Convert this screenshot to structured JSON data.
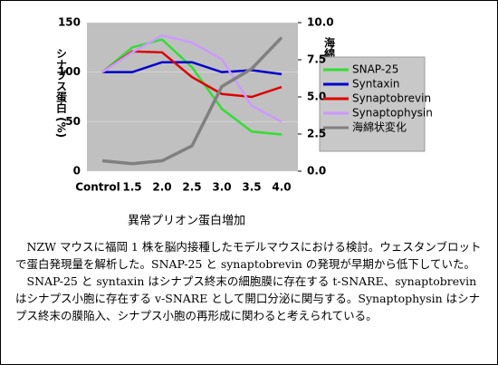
{
  "chart_data": {
    "type": "line",
    "x_label": "異常プリオン蛋白増加",
    "y_label": "シナプス蛋白 (%)",
    "y2_label": "海綿状変化 (%)",
    "categories": [
      "Control",
      "1.5",
      "2.0",
      "2.5",
      "3.0",
      "3.5",
      "4.0"
    ],
    "ylim": [
      0,
      150
    ],
    "yticks": [
      0,
      50,
      100,
      150
    ],
    "y2lim": [
      0,
      10
    ],
    "y2ticks": [
      {
        "value": 0,
        "label": "0.0"
      },
      {
        "value": 2.5,
        "label": "2.5"
      },
      {
        "value": 5,
        "label": "5.0"
      },
      {
        "value": 7.5,
        "label": "7.5"
      },
      {
        "value": 10,
        "label": "10.0"
      }
    ],
    "grid": true,
    "legend": "right",
    "series": [
      {
        "name": "SNAP-25",
        "color": "#33dd33",
        "values": [
          100,
          125,
          133,
          105,
          63,
          40,
          37
        ]
      },
      {
        "name": "Syntaxin",
        "color": "#0000cc",
        "values": [
          100,
          100,
          110,
          110,
          100,
          102,
          98
        ]
      },
      {
        "name": "Synaptobrevin",
        "color": "#dd0000",
        "values": [
          100,
          121,
          120,
          95,
          78,
          75,
          85
        ]
      },
      {
        "name": "Synaptophysin",
        "color": "#cc99ff",
        "values": [
          100,
          120,
          137,
          130,
          113,
          66,
          50
        ]
      },
      {
        "name": "海綿状変化",
        "color": "#808080",
        "axis": "y2",
        "values": [
          0.7,
          0.5,
          0.7,
          1.7,
          5.7,
          6.9,
          9.0
        ]
      }
    ]
  },
  "caption": {
    "paragraphs": [
      "NZW マウスに福岡 1 株を脳内接種したモデルマウスにおける検討。ウェスタンブロットで蛋白発現量を解析した。SNAP-25 と synaptobrevin の発現が早期から低下していた。",
      "SNAP-25 と syntaxin はシナプス終末の細胞膜に存在する t-SNARE、synaptobrevin はシナプス小胞に存在する v-SNARE として開口分泌に関与する。Synaptophysin はシナプス終末の膜陥入、シナプス小胞の再形成に関わると考えられている。"
    ]
  }
}
